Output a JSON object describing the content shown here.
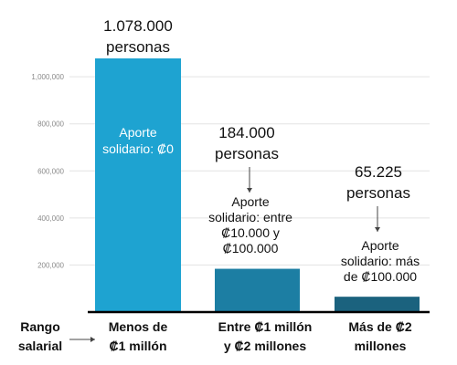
{
  "chart_data": {
    "type": "bar",
    "categories": [
      [
        "Menos de",
        "₡1 millón"
      ],
      [
        "Entre ₡1 millón",
        "y ₡2 millones"
      ],
      [
        "Más de ₡2",
        "millones"
      ]
    ],
    "values": [
      1078000,
      184000,
      65225
    ],
    "bar_colors": [
      "#1ea3d1",
      "#1c7ea3",
      "#1b627e"
    ],
    "value_labels": [
      [
        "1.078.000",
        "personas"
      ],
      [
        "184.000",
        "personas"
      ],
      [
        "65.225",
        "personas"
      ]
    ],
    "bar_notes": [
      [
        "Aporte",
        "solidario: ₡0"
      ],
      [
        "Aporte",
        "solidario: entre",
        "₡10.000 y",
        "₡100.000"
      ],
      [
        "Aporte",
        "solidario: más",
        "de ₡100.000"
      ]
    ],
    "yticks": [
      "200,000",
      "400,000",
      "600,000",
      "800,000",
      "1,000,000"
    ],
    "ytick_values": [
      200000,
      400000,
      600000,
      800000,
      1000000
    ],
    "ylim": [
      0,
      1250000
    ],
    "grid": true,
    "xlabel": [
      "Rango",
      "salarial"
    ]
  }
}
